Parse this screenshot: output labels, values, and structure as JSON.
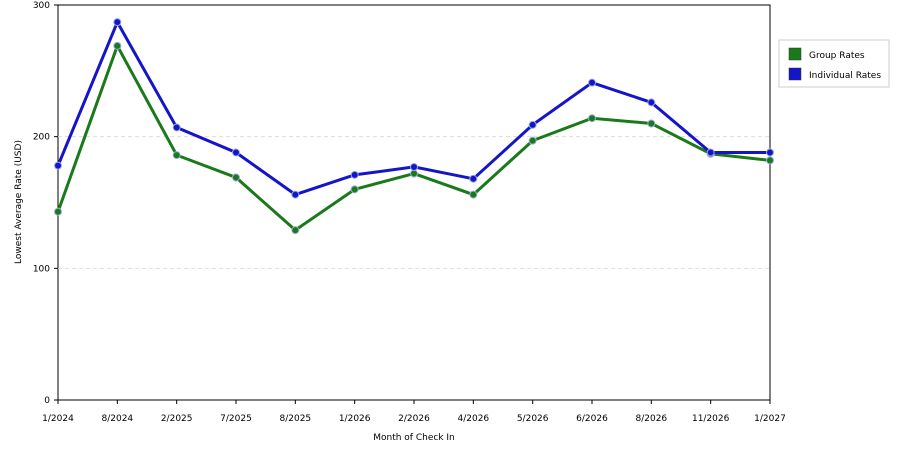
{
  "chart_data": {
    "type": "line",
    "categories": [
      "1/2024",
      "8/2024",
      "2/2025",
      "7/2025",
      "8/2025",
      "1/2026",
      "2/2026",
      "4/2026",
      "5/2026",
      "6/2026",
      "8/2026",
      "11/2026",
      "1/2027"
    ],
    "series": [
      {
        "name": "Group Rates",
        "color": "#1a7a1a",
        "values": [
          143,
          269,
          186,
          169,
          129,
          160,
          172,
          156,
          197,
          214,
          210,
          187,
          182
        ]
      },
      {
        "name": "Individual Rates",
        "color": "#1515c8",
        "values": [
          178,
          287,
          207,
          188,
          156,
          171,
          177,
          168,
          209,
          241,
          226,
          188,
          188
        ]
      }
    ],
    "ylim": [
      0,
      300
    ],
    "yticks": [
      0,
      100,
      200,
      300
    ],
    "x_label": "Month of Check In",
    "y_label": "Lowest Average Rate (USD)",
    "grid": true,
    "legend": "right"
  }
}
